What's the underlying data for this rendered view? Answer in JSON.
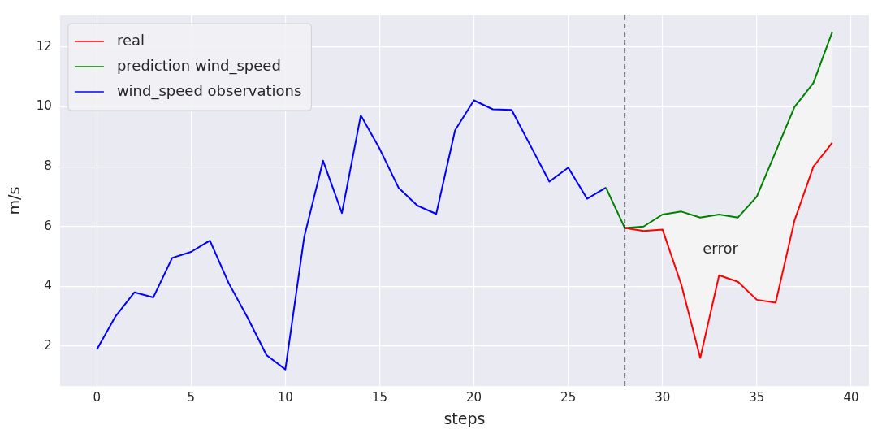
{
  "chart_data": {
    "type": "line",
    "xlabel": "steps",
    "ylabel": "m/s",
    "series": [
      {
        "name": "real",
        "color": "#ff0000",
        "x": [
          28,
          29,
          30,
          31,
          32,
          33,
          34,
          35,
          36,
          37,
          38,
          39
        ],
        "values": [
          5.95,
          5.85,
          5.9,
          4.05,
          1.6,
          4.37,
          4.15,
          3.55,
          3.45,
          6.2,
          8.0,
          8.8
        ]
      },
      {
        "name": "prediction wind_speed",
        "color": "#008000",
        "x": [
          27,
          28,
          29,
          30,
          31,
          32,
          33,
          34,
          35,
          36,
          37,
          38,
          39
        ],
        "values": [
          7.3,
          5.95,
          6.0,
          6.4,
          6.5,
          6.3,
          6.4,
          6.3,
          7.0,
          8.5,
          10.0,
          10.8,
          12.5
        ],
        "lower": [
          null,
          5.95,
          5.85,
          5.9,
          4.05,
          1.6,
          4.37,
          4.15,
          3.55,
          3.45,
          6.2,
          8.0,
          8.8
        ],
        "upper": [
          null,
          5.95,
          6.0,
          6.4,
          6.5,
          6.3,
          6.4,
          6.3,
          7.0,
          8.5,
          10.0,
          10.8,
          12.5
        ]
      },
      {
        "name": "wind_speed observations",
        "color": "#0000ff",
        "x": [
          0,
          1,
          2,
          3,
          4,
          5,
          6,
          7,
          8,
          9,
          10,
          11,
          12,
          13,
          14,
          15,
          16,
          17,
          18,
          19,
          20,
          21,
          22,
          23,
          24,
          25,
          26,
          27
        ],
        "values": [
          1.88,
          3.0,
          3.8,
          3.63,
          4.95,
          5.15,
          5.53,
          4.1,
          2.95,
          1.7,
          1.22,
          5.65,
          8.2,
          6.45,
          9.72,
          8.6,
          7.3,
          6.7,
          6.42,
          9.22,
          10.22,
          9.92,
          9.9,
          8.7,
          7.5,
          7.97,
          6.93,
          7.3
        ]
      }
    ],
    "xlim": [
      -1.95,
      40.95
    ],
    "xticks": [
      0,
      5,
      10,
      15,
      20,
      25,
      30,
      35,
      40
    ],
    "ylim": [
      0.66,
      13.06
    ],
    "yticks": [
      2,
      4,
      6,
      8,
      10,
      12
    ],
    "ref_lines": [
      {
        "axis": "x",
        "value": 28,
        "color": "#000000",
        "line_style": "dashed"
      }
    ],
    "annotations": [
      "error"
    ],
    "grid": true,
    "legend": "top left",
    "marker": "none",
    "line_style": "solid"
  }
}
